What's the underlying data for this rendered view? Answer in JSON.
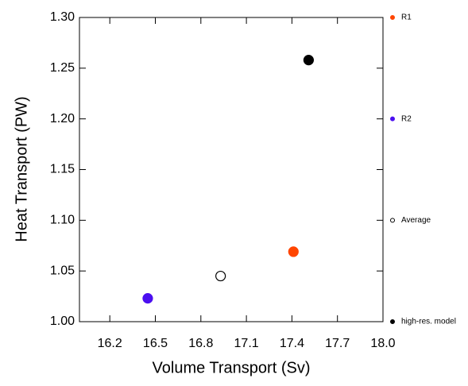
{
  "chart_data": {
    "type": "scatter",
    "x_label": "Volume Transport (Sv)",
    "y_label": "Heat Transport (PW)",
    "xlim": [
      16.0,
      18.0
    ],
    "xticks": [
      {
        "value": 16.2,
        "label": "16.2"
      },
      {
        "value": 16.5,
        "label": "16.5"
      },
      {
        "value": 16.8,
        "label": "16.8"
      },
      {
        "value": 17.1,
        "label": "17.1"
      },
      {
        "value": 17.4,
        "label": "17.4"
      },
      {
        "value": 17.7,
        "label": "17.7"
      },
      {
        "value": 18.0,
        "label": "18.0"
      }
    ],
    "ylim": [
      1.0,
      1.3
    ],
    "yticks": [
      {
        "value": 1.0,
        "label": "1.00"
      },
      {
        "value": 1.05,
        "label": "1.05"
      },
      {
        "value": 1.1,
        "label": "1.10"
      },
      {
        "value": 1.15,
        "label": "1.15"
      },
      {
        "value": 1.2,
        "label": "1.20"
      },
      {
        "value": 1.25,
        "label": "1.25"
      },
      {
        "value": 1.3,
        "label": "1.30"
      }
    ],
    "series": [
      {
        "name": "R1",
        "color": "#ff4500",
        "filled": true,
        "x": [
          17.41
        ],
        "values": [
          1.069
        ]
      },
      {
        "name": "R2",
        "color": "#4b0ff0",
        "filled": true,
        "x": [
          16.45
        ],
        "values": [
          1.023
        ]
      },
      {
        "name": "Average",
        "color": "#000000",
        "filled": false,
        "x": [
          16.93
        ],
        "values": [
          1.045
        ]
      },
      {
        "name": "high-res. model",
        "color": "#000000",
        "filled": true,
        "x": [
          17.51
        ],
        "values": [
          1.258
        ]
      }
    ]
  }
}
